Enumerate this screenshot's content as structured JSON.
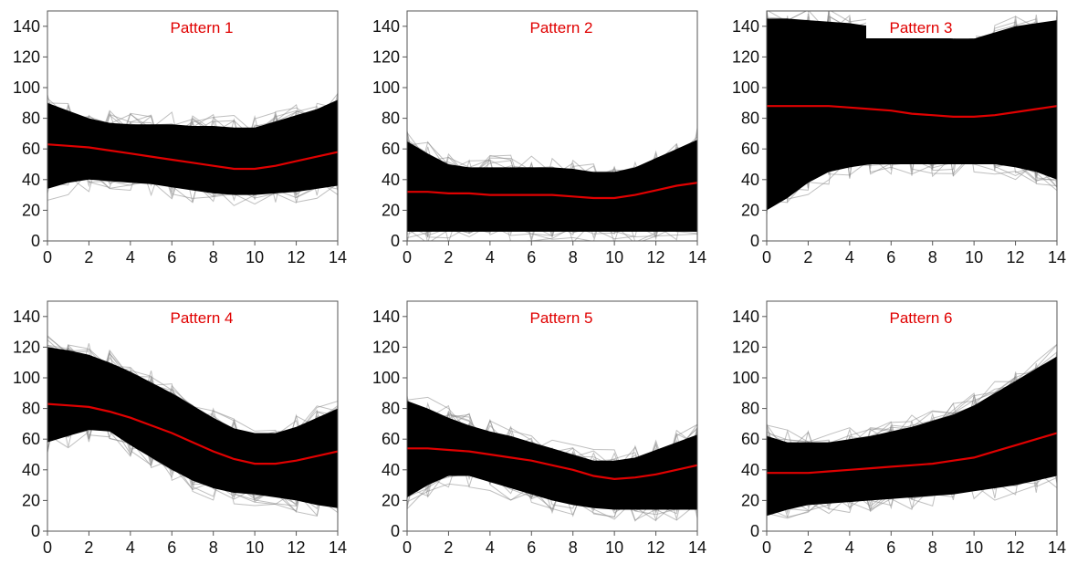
{
  "colors": {
    "band": "#000000",
    "trace": "#8a8a8a",
    "mean": "#e00000",
    "axis": "#555555",
    "title": "#e00000"
  },
  "axes": {
    "xlim": [
      0,
      14
    ],
    "ylim": [
      0,
      150
    ],
    "xticks": [
      "0",
      "2",
      "4",
      "6",
      "8",
      "10",
      "12",
      "14"
    ],
    "yticks": [
      "0",
      "20",
      "40",
      "60",
      "80",
      "100",
      "120",
      "140"
    ]
  },
  "chart_data": [
    {
      "type": "line",
      "title": "Pattern 1",
      "x": [
        0,
        1,
        2,
        3,
        4,
        5,
        6,
        7,
        8,
        9,
        10,
        11,
        12,
        13,
        14
      ],
      "mean": [
        63,
        62,
        61,
        59,
        57,
        55,
        53,
        51,
        49,
        47,
        47,
        49,
        52,
        55,
        58
      ],
      "envelope_upper": [
        90,
        85,
        80,
        77,
        76,
        76,
        76,
        75,
        75,
        74,
        74,
        78,
        82,
        86,
        92
      ],
      "envelope_lower": [
        34,
        38,
        40,
        39,
        38,
        37,
        35,
        33,
        31,
        30,
        30,
        31,
        32,
        34,
        36
      ]
    },
    {
      "type": "line",
      "title": "Pattern 2",
      "x": [
        0,
        1,
        2,
        3,
        4,
        5,
        6,
        7,
        8,
        9,
        10,
        11,
        12,
        13,
        14
      ],
      "mean": [
        32,
        32,
        31,
        31,
        30,
        30,
        30,
        30,
        29,
        28,
        28,
        30,
        33,
        36,
        38
      ],
      "envelope_upper": [
        65,
        57,
        50,
        48,
        48,
        48,
        48,
        48,
        47,
        45,
        45,
        48,
        54,
        60,
        66
      ],
      "envelope_lower": [
        6,
        6,
        6,
        6,
        6,
        6,
        6,
        6,
        6,
        6,
        6,
        6,
        6,
        6,
        6
      ]
    },
    {
      "type": "line",
      "title": "Pattern 3",
      "x": [
        0,
        1,
        2,
        3,
        4,
        5,
        6,
        7,
        8,
        9,
        10,
        11,
        12,
        13,
        14
      ],
      "mean": [
        88,
        88,
        88,
        88,
        87,
        86,
        85,
        83,
        82,
        81,
        81,
        82,
        84,
        86,
        88
      ],
      "envelope_upper": [
        145,
        145,
        144,
        143,
        142,
        140,
        138,
        135,
        133,
        132,
        132,
        136,
        140,
        142,
        144
      ],
      "envelope_lower": [
        20,
        28,
        38,
        45,
        48,
        50,
        50,
        50,
        50,
        50,
        50,
        50,
        48,
        45,
        40
      ]
    },
    {
      "type": "line",
      "title": "Pattern 4",
      "x": [
        0,
        1,
        2,
        3,
        4,
        5,
        6,
        7,
        8,
        9,
        10,
        11,
        12,
        13,
        14
      ],
      "mean": [
        83,
        82,
        81,
        78,
        74,
        69,
        64,
        58,
        52,
        47,
        44,
        44,
        46,
        49,
        52
      ],
      "envelope_upper": [
        120,
        118,
        115,
        110,
        104,
        97,
        90,
        82,
        74,
        67,
        64,
        64,
        68,
        74,
        80
      ],
      "envelope_lower": [
        58,
        62,
        66,
        65,
        56,
        48,
        40,
        33,
        28,
        25,
        24,
        22,
        20,
        17,
        15
      ]
    },
    {
      "type": "line",
      "title": "Pattern 5",
      "x": [
        0,
        1,
        2,
        3,
        4,
        5,
        6,
        7,
        8,
        9,
        10,
        11,
        12,
        13,
        14
      ],
      "mean": [
        54,
        54,
        53,
        52,
        50,
        48,
        46,
        43,
        40,
        36,
        34,
        35,
        37,
        40,
        43
      ],
      "envelope_upper": [
        85,
        80,
        74,
        69,
        65,
        62,
        58,
        54,
        50,
        46,
        46,
        48,
        53,
        58,
        63
      ],
      "envelope_lower": [
        22,
        30,
        36,
        36,
        32,
        28,
        24,
        20,
        17,
        15,
        14,
        14,
        14,
        14,
        14
      ]
    },
    {
      "type": "line",
      "title": "Pattern 6",
      "x": [
        0,
        1,
        2,
        3,
        4,
        5,
        6,
        7,
        8,
        9,
        10,
        11,
        12,
        13,
        14
      ],
      "mean": [
        38,
        38,
        38,
        39,
        40,
        41,
        42,
        43,
        44,
        46,
        48,
        52,
        56,
        60,
        64
      ],
      "envelope_upper": [
        62,
        58,
        58,
        58,
        60,
        62,
        65,
        68,
        72,
        76,
        82,
        90,
        98,
        106,
        114
      ],
      "envelope_lower": [
        10,
        14,
        17,
        18,
        19,
        20,
        21,
        22,
        23,
        24,
        26,
        28,
        30,
        33,
        36
      ]
    }
  ]
}
